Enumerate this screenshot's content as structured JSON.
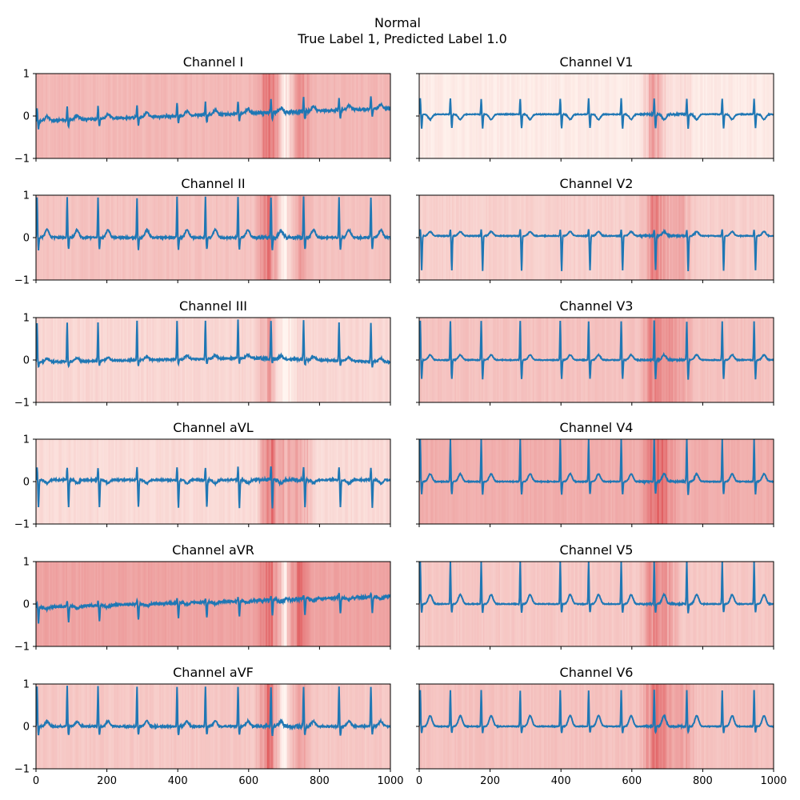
{
  "figure": {
    "title": "Normal",
    "subtitle": "True Label 1, Predicted Label 1.0"
  },
  "colors": {
    "signal": "#1f77b4",
    "heat_low": "#fff5f0",
    "heat_high": "#d6292e",
    "axis": "#000000"
  },
  "chart_data": [
    {
      "type": "line",
      "title": "Channel I",
      "xlim": [
        0,
        1000
      ],
      "ylim": [
        -1,
        1
      ],
      "xticks": [
        "0",
        "200",
        "400",
        "600",
        "800",
        "1000"
      ],
      "yticks": [
        "-1",
        "0",
        "1"
      ],
      "baseline": "drift-up",
      "r_peak": 0.3,
      "s_depth": -0.18,
      "t_wave": 0.1,
      "noise": 0.05,
      "heat_base": 0.3,
      "heat_hotspots": [
        [
          655,
          0.38
        ],
        [
          700,
          -0.25
        ],
        [
          745,
          0.2
        ]
      ]
    },
    {
      "type": "line",
      "title": "Channel V1",
      "xlim": [
        0,
        1000
      ],
      "ylim": [
        -1,
        1
      ],
      "xticks": [
        "0",
        "200",
        "400",
        "600",
        "800",
        "1000"
      ],
      "yticks": [
        "-1",
        "0",
        "1"
      ],
      "baseline": "flat-0.05",
      "r_peak": 0.37,
      "s_depth": -0.33,
      "t_wave": -0.12,
      "noise": 0.02,
      "heat_base": 0.05,
      "heat_hotspots": [
        [
          655,
          0.25
        ],
        [
          680,
          0.18
        ],
        [
          745,
          0.1
        ]
      ]
    },
    {
      "type": "line",
      "title": "Channel II",
      "xlim": [
        0,
        1000
      ],
      "ylim": [
        -1,
        1
      ],
      "xticks": [
        "0",
        "200",
        "400",
        "600",
        "800",
        "1000"
      ],
      "yticks": [
        "-1",
        "0",
        "1"
      ],
      "baseline": "flat-0",
      "r_peak": 0.95,
      "s_depth": -0.28,
      "t_wave": 0.18,
      "noise": 0.04,
      "heat_base": 0.25,
      "heat_hotspots": [
        [
          655,
          0.35
        ],
        [
          700,
          -0.2
        ],
        [
          745,
          0.18
        ]
      ]
    },
    {
      "type": "line",
      "title": "Channel V2",
      "xlim": [
        0,
        1000
      ],
      "ylim": [
        -1,
        1
      ],
      "xticks": [
        "0",
        "200",
        "400",
        "600",
        "800",
        "1000"
      ],
      "yticks": [
        "-1",
        "0",
        "1"
      ],
      "baseline": "flat-0.05",
      "r_peak": 0.15,
      "s_depth": -0.82,
      "t_wave": 0.1,
      "noise": 0.02,
      "heat_base": 0.18,
      "heat_hotspots": [
        [
          655,
          0.3
        ],
        [
          690,
          0.22
        ],
        [
          740,
          0.2
        ]
      ]
    },
    {
      "type": "line",
      "title": "Channel III",
      "xlim": [
        0,
        1000
      ],
      "ylim": [
        -1,
        1
      ],
      "xticks": [
        "0",
        "200",
        "400",
        "600",
        "800",
        "1000"
      ],
      "yticks": [
        "-1",
        "0",
        "1"
      ],
      "baseline": "drift-down",
      "r_peak": 0.92,
      "s_depth": -0.12,
      "t_wave": 0.08,
      "noise": 0.04,
      "heat_base": 0.15,
      "heat_hotspots": [
        [
          655,
          0.25
        ],
        [
          700,
          -0.15
        ]
      ]
    },
    {
      "type": "line",
      "title": "Channel V3",
      "xlim": [
        0,
        1000
      ],
      "ylim": [
        -1,
        1
      ],
      "xticks": [
        "0",
        "200",
        "400",
        "600",
        "800",
        "1000"
      ],
      "yticks": [
        "-1",
        "0",
        "1"
      ],
      "baseline": "flat-0",
      "r_peak": 0.92,
      "s_depth": -0.45,
      "t_wave": 0.12,
      "noise": 0.02,
      "heat_base": 0.25,
      "heat_hotspots": [
        [
          660,
          0.3
        ],
        [
          700,
          0.2
        ],
        [
          740,
          0.15
        ]
      ]
    },
    {
      "type": "line",
      "title": "Channel aVL",
      "xlim": [
        0,
        1000
      ],
      "ylim": [
        -1,
        1
      ],
      "xticks": [
        "0",
        "200",
        "400",
        "600",
        "800",
        "1000"
      ],
      "yticks": [
        "-1",
        "0",
        "1"
      ],
      "baseline": "flat-0.05",
      "r_peak": 0.3,
      "s_depth": -0.65,
      "t_wave": -0.08,
      "noise": 0.04,
      "heat_base": 0.13,
      "heat_hotspots": [
        [
          660,
          0.45
        ],
        [
          700,
          0.2
        ],
        [
          745,
          0.3
        ]
      ]
    },
    {
      "type": "line",
      "title": "Channel V4",
      "xlim": [
        0,
        1000
      ],
      "ylim": [
        -1,
        1
      ],
      "xticks": [
        "0",
        "200",
        "400",
        "600",
        "800",
        "1000"
      ],
      "yticks": [
        "-1",
        "0",
        "1"
      ],
      "baseline": "flat-0",
      "r_peak": 1.0,
      "s_depth": -0.3,
      "t_wave": 0.18,
      "noise": 0.02,
      "heat_base": 0.35,
      "heat_hotspots": [
        [
          660,
          0.3
        ],
        [
          690,
          0.25
        ]
      ]
    },
    {
      "type": "line",
      "title": "Channel aVR",
      "xlim": [
        0,
        1000
      ],
      "ylim": [
        -1,
        1
      ],
      "xticks": [
        "0",
        "200",
        "400",
        "600",
        "800",
        "1000"
      ],
      "yticks": [
        "-1",
        "0",
        "1"
      ],
      "baseline": "drift-up-neg",
      "r_peak": 0.1,
      "s_depth": -0.38,
      "t_wave": -0.05,
      "noise": 0.05,
      "heat_base": 0.4,
      "heat_hotspots": [
        [
          655,
          0.3
        ],
        [
          700,
          -0.3
        ],
        [
          740,
          0.25
        ]
      ]
    },
    {
      "type": "line",
      "title": "Channel V5",
      "xlim": [
        0,
        1000
      ],
      "ylim": [
        -1,
        1
      ],
      "xticks": [
        "0",
        "200",
        "400",
        "600",
        "800",
        "1000"
      ],
      "yticks": [
        "-1",
        "0",
        "1"
      ],
      "baseline": "flat-0",
      "r_peak": 1.0,
      "s_depth": -0.2,
      "t_wave": 0.22,
      "noise": 0.02,
      "heat_base": 0.22,
      "heat_hotspots": [
        [
          660,
          0.35
        ],
        [
          700,
          0.2
        ]
      ]
    },
    {
      "type": "line",
      "title": "Channel aVF",
      "xlim": [
        0,
        1000
      ],
      "ylim": [
        -1,
        1
      ],
      "xticks": [
        "0",
        "200",
        "400",
        "600",
        "800",
        "1000"
      ],
      "yticks": [
        "-1",
        "0",
        "1"
      ],
      "baseline": "flat-0",
      "r_peak": 0.95,
      "s_depth": -0.2,
      "t_wave": 0.12,
      "noise": 0.04,
      "heat_base": 0.22,
      "heat_hotspots": [
        [
          655,
          0.4
        ],
        [
          700,
          -0.2
        ],
        [
          740,
          0.22
        ]
      ]
    },
    {
      "type": "line",
      "title": "Channel V6",
      "xlim": [
        0,
        1000
      ],
      "ylim": [
        -1,
        1
      ],
      "xticks": [
        "0",
        "200",
        "400",
        "600",
        "800",
        "1000"
      ],
      "yticks": [
        "-1",
        "0",
        "1"
      ],
      "baseline": "flat-0",
      "r_peak": 0.85,
      "s_depth": -0.15,
      "t_wave": 0.25,
      "noise": 0.02,
      "heat_base": 0.25,
      "heat_hotspots": [
        [
          660,
          0.35
        ],
        [
          690,
          0.2
        ],
        [
          740,
          0.2
        ]
      ]
    }
  ]
}
